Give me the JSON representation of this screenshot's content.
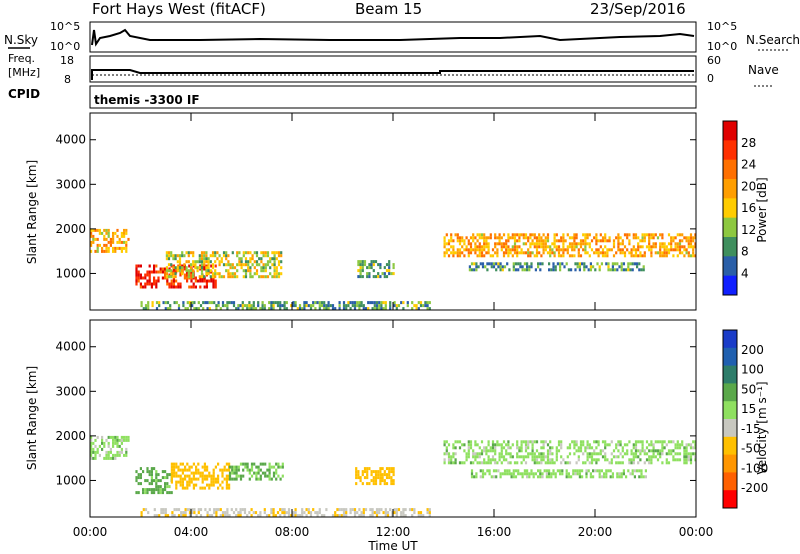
{
  "header": {
    "station": "Fort Hays West (fitACF)",
    "beam": "Beam 15",
    "date": "23/Sep/2016"
  },
  "noise_panel": {
    "left_label": "N.Sky",
    "left_ticks": [
      "10^5",
      "10^0"
    ],
    "right_label": "N.Search",
    "right_ticks": [
      "10^5",
      "10^0"
    ]
  },
  "freq_panel": {
    "left_label_1": "Freq.",
    "left_label_2": "[MHz]",
    "left_ticks": [
      "18",
      "8"
    ],
    "right_label": "Nave",
    "right_ticks": [
      "60",
      "0"
    ]
  },
  "cpid_panel": {
    "label": "CPID",
    "program": "themis -3300 IF"
  },
  "power_colorbar": {
    "label": "Power [dB]",
    "ticks": [
      "28",
      "24",
      "20",
      "16",
      "12",
      "8",
      "4"
    ],
    "colors": [
      "#e00000",
      "#ff3000",
      "#ff7000",
      "#ff9e00",
      "#ffcc00",
      "#8dc840",
      "#3f8f5e",
      "#2a5fa8",
      "#1020ff"
    ]
  },
  "velocity_colorbar": {
    "label": "Velocity [m s⁻¹]",
    "ticks": [
      "200",
      "100",
      "50",
      "15",
      "-15",
      "-50",
      "-100",
      "-200"
    ],
    "colors": [
      "#1a3cc8",
      "#2060b0",
      "#2e7d6a",
      "#5aa84a",
      "#8fe060",
      "#c8c8c0",
      "#ffc000",
      "#ff9600",
      "#ff6000",
      "#ff0000"
    ]
  },
  "x_axis": {
    "label": "Time UT",
    "ticks": [
      "00:00",
      "04:00",
      "08:00",
      "12:00",
      "16:00",
      "20:00",
      "00:00"
    ]
  },
  "chart_data": [
    {
      "type": "heatmap",
      "title": "Power",
      "xlabel": "Time UT",
      "ylabel": "Slant Range [km]",
      "xlim_hours": [
        0,
        24
      ],
      "ylim": [
        180,
        4600
      ],
      "y_ticks": [
        1000,
        2000,
        3000,
        4000
      ],
      "colorbar_range_db": [
        0,
        30
      ],
      "echo_regions": [
        {
          "t_start": 0.0,
          "t_end": 1.5,
          "range_start": 1500,
          "range_end": 2000,
          "power_db": 17
        },
        {
          "t_start": 1.8,
          "t_end": 5.0,
          "range_start": 700,
          "range_end": 1200,
          "power_db": 26
        },
        {
          "t_start": 3.0,
          "t_end": 7.6,
          "range_start": 900,
          "range_end": 1500,
          "power_db": 14
        },
        {
          "t_start": 10.5,
          "t_end": 12.0,
          "range_start": 900,
          "range_end": 1300,
          "power_db": 10
        },
        {
          "t_start": 2.0,
          "t_end": 13.5,
          "range_start": 200,
          "range_end": 380,
          "power_db": 9
        },
        {
          "t_start": 14.0,
          "t_end": 24.0,
          "range_start": 1400,
          "range_end": 1900,
          "power_db": 18
        },
        {
          "t_start": 15.0,
          "t_end": 22.0,
          "range_start": 1050,
          "range_end": 1250,
          "power_db": 9
        }
      ]
    },
    {
      "type": "heatmap",
      "title": "Velocity",
      "xlabel": "Time UT",
      "ylabel": "Slant Range [km]",
      "xlim_hours": [
        0,
        24
      ],
      "ylim": [
        180,
        4600
      ],
      "y_ticks": [
        1000,
        2000,
        3000,
        4000
      ],
      "colorbar_range_ms": [
        -250,
        250
      ],
      "echo_regions": [
        {
          "t_start": 0.0,
          "t_end": 1.5,
          "range_start": 1500,
          "range_end": 2000,
          "velocity": 0
        },
        {
          "t_start": 1.8,
          "t_end": 3.2,
          "range_start": 700,
          "range_end": 1300,
          "velocity": 30
        },
        {
          "t_start": 3.2,
          "t_end": 5.5,
          "range_start": 800,
          "range_end": 1400,
          "velocity": -70
        },
        {
          "t_start": 5.5,
          "t_end": 7.6,
          "range_start": 1000,
          "range_end": 1400,
          "velocity": 20
        },
        {
          "t_start": 10.5,
          "t_end": 12.0,
          "range_start": 900,
          "range_end": 1300,
          "velocity": -70
        },
        {
          "t_start": 2.0,
          "t_end": 13.5,
          "range_start": 200,
          "range_end": 380,
          "velocity": -40
        },
        {
          "t_start": 14.0,
          "t_end": 24.0,
          "range_start": 1400,
          "range_end": 1900,
          "velocity": 0
        },
        {
          "t_start": 15.0,
          "t_end": 22.0,
          "range_start": 1050,
          "range_end": 1250,
          "velocity": 0
        }
      ]
    }
  ]
}
